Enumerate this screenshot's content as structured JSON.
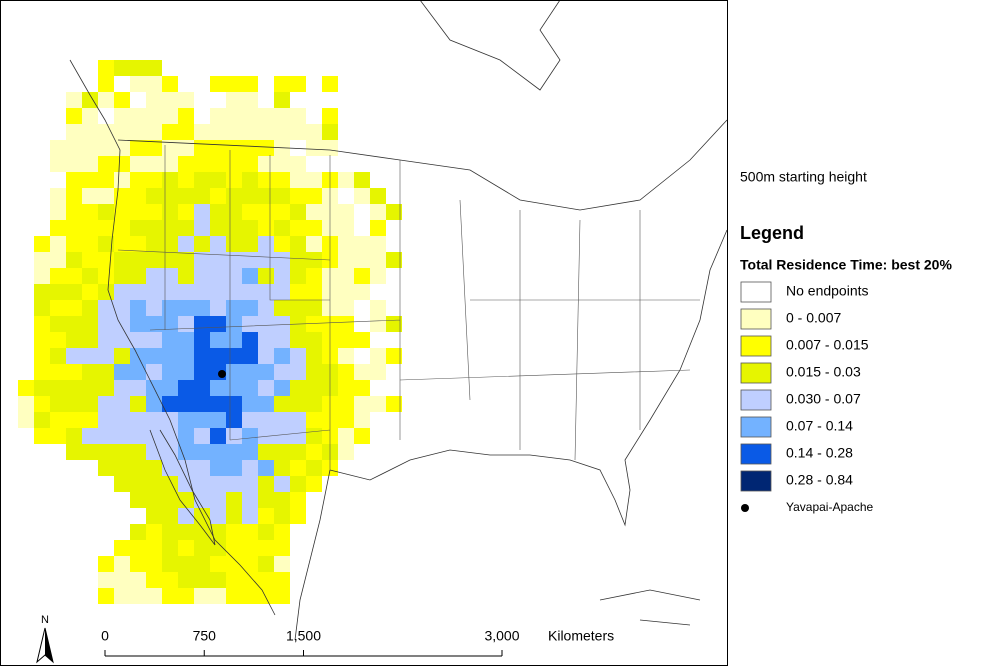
{
  "map": {
    "subtitle": "500m starting height",
    "legend": {
      "title": "Legend",
      "heading": "Total Residence Time: best 20%",
      "items": [
        {
          "label": "No endpoints",
          "color": "#ffffff"
        },
        {
          "label": "0 - 0.007",
          "color": "#ffffc0"
        },
        {
          "label": "0.007 - 0.015",
          "color": "#ffff00"
        },
        {
          "label": "0.015 - 0.03",
          "color": "#e6f500"
        },
        {
          "label": "0.030 - 0.07",
          "color": "#bfcfff"
        },
        {
          "label": "0.07 - 0.14",
          "color": "#73b2ff"
        },
        {
          "label": "0.14 - 0.28",
          "color": "#0a5ae6"
        },
        {
          "label": "0.28 - 0.84",
          "color": "#002673"
        }
      ],
      "site": {
        "label": "Yavapai-Apache",
        "color": "#000000"
      }
    },
    "north_arrow": "N",
    "scale_bar": {
      "unit": "Kilometers",
      "ticks": [
        0,
        750,
        {
          "value": 1500,
          "label": "1,500"
        },
        {
          "value": 3000,
          "label": "3,000"
        }
      ]
    }
  }
}
